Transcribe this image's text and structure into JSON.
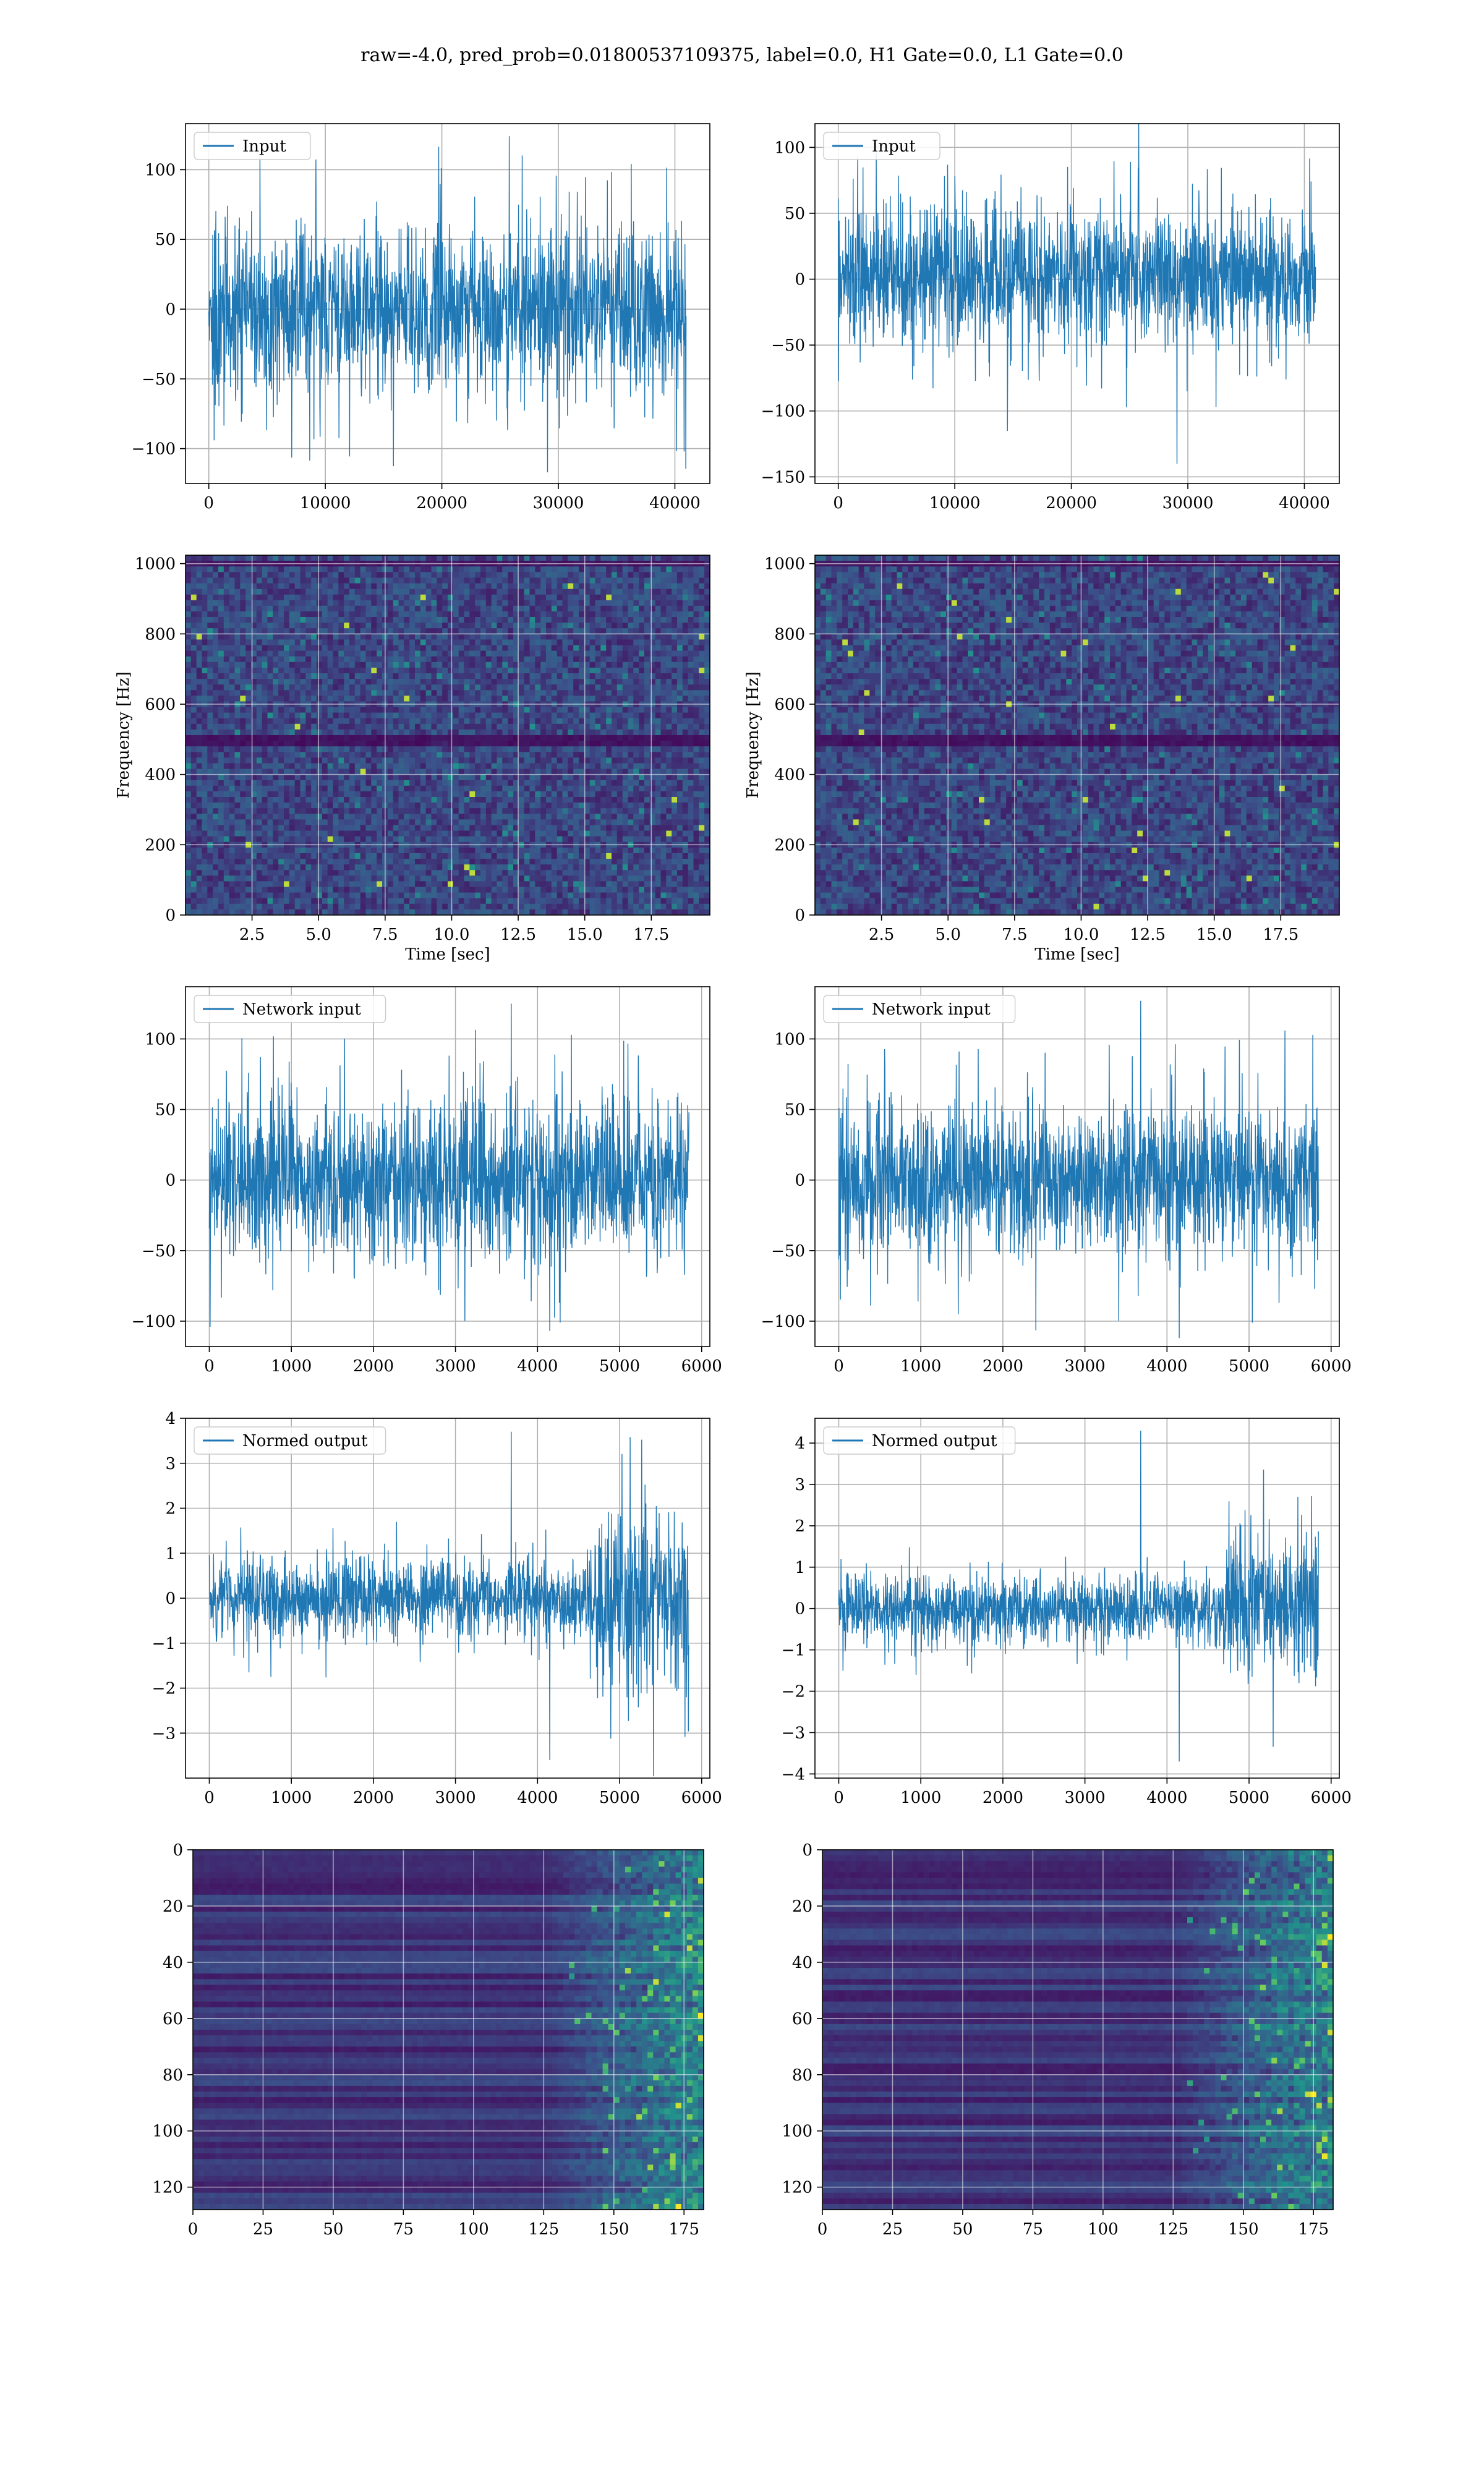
{
  "figure": {
    "suptitle": "raw=-4.0, pred_prob=0.01800537109375, label=0.0, H1 Gate=0.0, L1 Gate=0.0"
  },
  "colors": {
    "line": "#1f77b4",
    "grid": "#b0b0b0",
    "viridis_dark": "#440154",
    "viridis_mid": "#21918c",
    "viridis_bright": "#fde725"
  },
  "chart_data": [
    {
      "id": "input-h1",
      "type": "line",
      "title": "",
      "legend": "Input",
      "legend_loc": "upper left",
      "xlabel": "",
      "ylabel": "",
      "xlim": [
        -2000,
        43000
      ],
      "ylim": [
        -125,
        133
      ],
      "xticks": [
        0,
        10000,
        20000,
        30000,
        40000
      ],
      "yticks": [
        -100,
        -50,
        0,
        50,
        100
      ],
      "grid": true,
      "series": [
        {
          "name": "Input",
          "x_range": [
            0,
            40960
          ],
          "band": [
            -65,
            65
          ],
          "peak_high": 124,
          "peak_low": -117
        }
      ]
    },
    {
      "id": "input-l1",
      "type": "line",
      "title": "",
      "legend": "Input",
      "legend_loc": "upper left",
      "xlabel": "",
      "ylabel": "",
      "xlim": [
        -2000,
        43000
      ],
      "ylim": [
        -155,
        118
      ],
      "xticks": [
        0,
        10000,
        20000,
        30000,
        40000
      ],
      "yticks": [
        -150,
        -100,
        -50,
        0,
        50,
        100
      ],
      "grid": true,
      "series": [
        {
          "name": "Input",
          "x_range": [
            0,
            40960
          ],
          "band": [
            -55,
            60
          ],
          "peak_high": 128,
          "peak_low": -140
        }
      ]
    },
    {
      "id": "spectrogram-h1",
      "type": "heatmap",
      "title": "",
      "xlabel": "Time [sec]",
      "ylabel": "Frequency [Hz]",
      "xlim": [
        0,
        19.7
      ],
      "ylim": [
        0,
        1024
      ],
      "xticks": [
        2.5,
        5.0,
        7.5,
        10.0,
        12.5,
        15.0,
        17.5
      ],
      "yticks": [
        0,
        200,
        400,
        600,
        800,
        1000
      ],
      "grid": true,
      "colormap": "viridis",
      "description_values": {
        "background_level": "low",
        "dark_bands_hz": [
          500,
          1000
        ]
      }
    },
    {
      "id": "spectrogram-l1",
      "type": "heatmap",
      "title": "",
      "xlabel": "Time [sec]",
      "ylabel": "Frequency [Hz]",
      "xlim": [
        0,
        19.7
      ],
      "ylim": [
        0,
        1024
      ],
      "xticks": [
        2.5,
        5.0,
        7.5,
        10.0,
        12.5,
        15.0,
        17.5
      ],
      "yticks": [
        0,
        200,
        400,
        600,
        800,
        1000
      ],
      "grid": true,
      "colormap": "viridis",
      "description_values": {
        "background_level": "low",
        "dark_bands_hz": [
          500,
          1000
        ]
      }
    },
    {
      "id": "network-input-h1",
      "type": "line",
      "title": "",
      "legend": "Network input",
      "legend_loc": "upper left",
      "xlabel": "",
      "ylabel": "",
      "xlim": [
        -290,
        6100
      ],
      "ylim": [
        -118,
        137
      ],
      "xticks": [
        0,
        1000,
        2000,
        3000,
        4000,
        5000,
        6000
      ],
      "yticks": [
        -100,
        -50,
        0,
        50,
        100
      ],
      "grid": true,
      "series": [
        {
          "name": "Network input",
          "x_range": [
            0,
            5845
          ],
          "band": [
            -60,
            60
          ],
          "peak_high": 125,
          "peak_low": -107
        }
      ]
    },
    {
      "id": "network-input-l1",
      "type": "line",
      "title": "",
      "legend": "Network input",
      "legend_loc": "upper left",
      "xlabel": "",
      "ylabel": "",
      "xlim": [
        -290,
        6100
      ],
      "ylim": [
        -118,
        137
      ],
      "xticks": [
        0,
        1000,
        2000,
        3000,
        4000,
        5000,
        6000
      ],
      "yticks": [
        -100,
        -50,
        0,
        50,
        100
      ],
      "grid": true,
      "series": [
        {
          "name": "Network input",
          "x_range": [
            0,
            5845
          ],
          "band": [
            -60,
            60
          ],
          "peak_high": 127,
          "peak_low": -112
        }
      ]
    },
    {
      "id": "normed-output-h1",
      "type": "line",
      "title": "",
      "legend": "Normed output",
      "legend_loc": "upper left",
      "xlabel": "",
      "ylabel": "",
      "xlim": [
        -290,
        6100
      ],
      "ylim": [
        -4.0,
        4.0
      ],
      "xticks": [
        0,
        1000,
        2000,
        3000,
        4000,
        5000,
        6000
      ],
      "yticks": [
        -3,
        -2,
        -1,
        0,
        1,
        2,
        3,
        4
      ],
      "grid": true,
      "series": [
        {
          "name": "Normed output",
          "x_range": [
            0,
            5845
          ],
          "band_early": [
            -1.0,
            1.0
          ],
          "band_late": [
            -2.2,
            2.2
          ],
          "late_start": 4700,
          "peak_high": 3.7,
          "peak_low": -3.6
        }
      ]
    },
    {
      "id": "normed-output-l1",
      "type": "line",
      "title": "",
      "legend": "Normed output",
      "legend_loc": "upper left",
      "xlabel": "",
      "ylabel": "",
      "xlim": [
        -290,
        6100
      ],
      "ylim": [
        -4.1,
        4.6
      ],
      "xticks": [
        0,
        1000,
        2000,
        3000,
        4000,
        5000,
        6000
      ],
      "yticks": [
        -4,
        -3,
        -2,
        -1,
        0,
        1,
        2,
        3,
        4
      ],
      "grid": true,
      "series": [
        {
          "name": "Normed output",
          "x_range": [
            0,
            5845
          ],
          "band_early": [
            -0.9,
            0.9
          ],
          "band_late": [
            -2.0,
            2.0
          ],
          "late_start": 4700,
          "peak_high": 4.3,
          "peak_low": -3.7
        }
      ]
    },
    {
      "id": "feature-map-h1",
      "type": "heatmap",
      "title": "",
      "xlabel": "",
      "ylabel": "",
      "xlim": [
        0,
        182
      ],
      "ylim": [
        128,
        0
      ],
      "xticks": [
        0,
        25,
        50,
        75,
        100,
        125,
        150,
        175
      ],
      "yticks": [
        0,
        20,
        40,
        60,
        80,
        100,
        120
      ],
      "grid": true,
      "colormap": "viridis",
      "description_values": {
        "activity_onset_x": 125
      }
    },
    {
      "id": "feature-map-l1",
      "type": "heatmap",
      "title": "",
      "xlabel": "",
      "ylabel": "",
      "xlim": [
        0,
        182
      ],
      "ylim": [
        128,
        0
      ],
      "xticks": [
        0,
        25,
        50,
        75,
        100,
        125,
        150,
        175
      ],
      "yticks": [
        0,
        20,
        40,
        60,
        80,
        100,
        120
      ],
      "grid": true,
      "colormap": "viridis",
      "description_values": {
        "activity_onset_x": 125
      }
    }
  ]
}
